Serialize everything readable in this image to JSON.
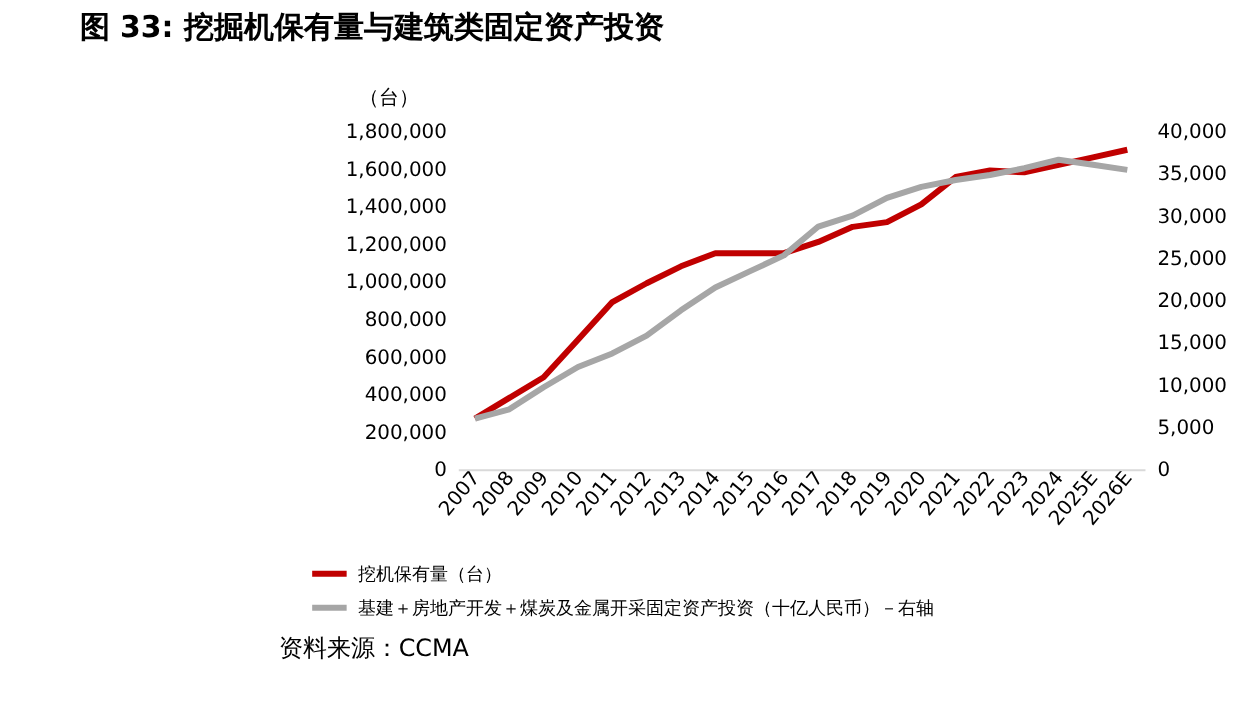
{
  "chart_data": {
    "type": "line",
    "title": "图 33: 挖掘机保有量与建筑类固定资产投资",
    "ylabel": "（台）",
    "categories": [
      "2007",
      "2008",
      "2009",
      "2010",
      "2011",
      "2012",
      "2013",
      "2014",
      "2015",
      "2016",
      "2017",
      "2018",
      "2019",
      "2020",
      "2021",
      "2022",
      "2023",
      "2024",
      "2025E",
      "2026E"
    ],
    "series": [
      {
        "name": "挖机保有量（台）",
        "color": "#c00000",
        "values": [
          270000,
          380000,
          490000,
          690000,
          890000,
          990000,
          1080000,
          1150000,
          1150000,
          1150000,
          1210000,
          1290000,
          1315000,
          1410000,
          1555000,
          1590000,
          1580000,
          1620000,
          1660000,
          1700000
        ]
      },
      {
        "name": "基建＋房地产开发＋煤炭及金属开采固定资产投资（十亿人民币）－右轴",
        "color": "#a6a6a6",
        "axis": "y2",
        "values": [
          6000,
          7100,
          9700,
          12100,
          13700,
          15800,
          18800,
          21500,
          23400,
          25300,
          28700,
          30000,
          32100,
          33400,
          34200,
          34800,
          35600,
          36600,
          36000,
          35400
        ]
      }
    ],
    "ylim": [
      0,
      1800000
    ],
    "yticks": [
      0,
      {
        "value": 200000,
        "label": "200,000"
      },
      {
        "value": 400000,
        "label": "400,000"
      },
      {
        "value": 600000,
        "label": "600,000"
      },
      {
        "value": 800000,
        "label": "800,000"
      },
      {
        "value": 1000000,
        "label": "1,000,000"
      },
      {
        "value": 1200000,
        "label": "1,200,000"
      },
      {
        "value": 1400000,
        "label": "1,400,000"
      },
      {
        "value": 1600000,
        "label": "1,600,000"
      },
      {
        "value": 1800000,
        "label": "1,800,000"
      }
    ],
    "y2lim": [
      0,
      40000
    ],
    "y2ticks": [
      0,
      {
        "value": 5000,
        "label": "5,000"
      },
      {
        "value": 10000,
        "label": "10,000"
      },
      {
        "value": 15000,
        "label": "15,000"
      },
      {
        "value": 20000,
        "label": "20,000"
      },
      {
        "value": 25000,
        "label": "25,000"
      },
      {
        "value": 30000,
        "label": "30,000"
      },
      {
        "value": 35000,
        "label": "35,000"
      },
      {
        "value": 40000,
        "label": "40,000"
      }
    ],
    "grid": false,
    "legend": "bottom left",
    "line_style": "solid",
    "annotations": [
      "资料来源：CCMA"
    ]
  }
}
